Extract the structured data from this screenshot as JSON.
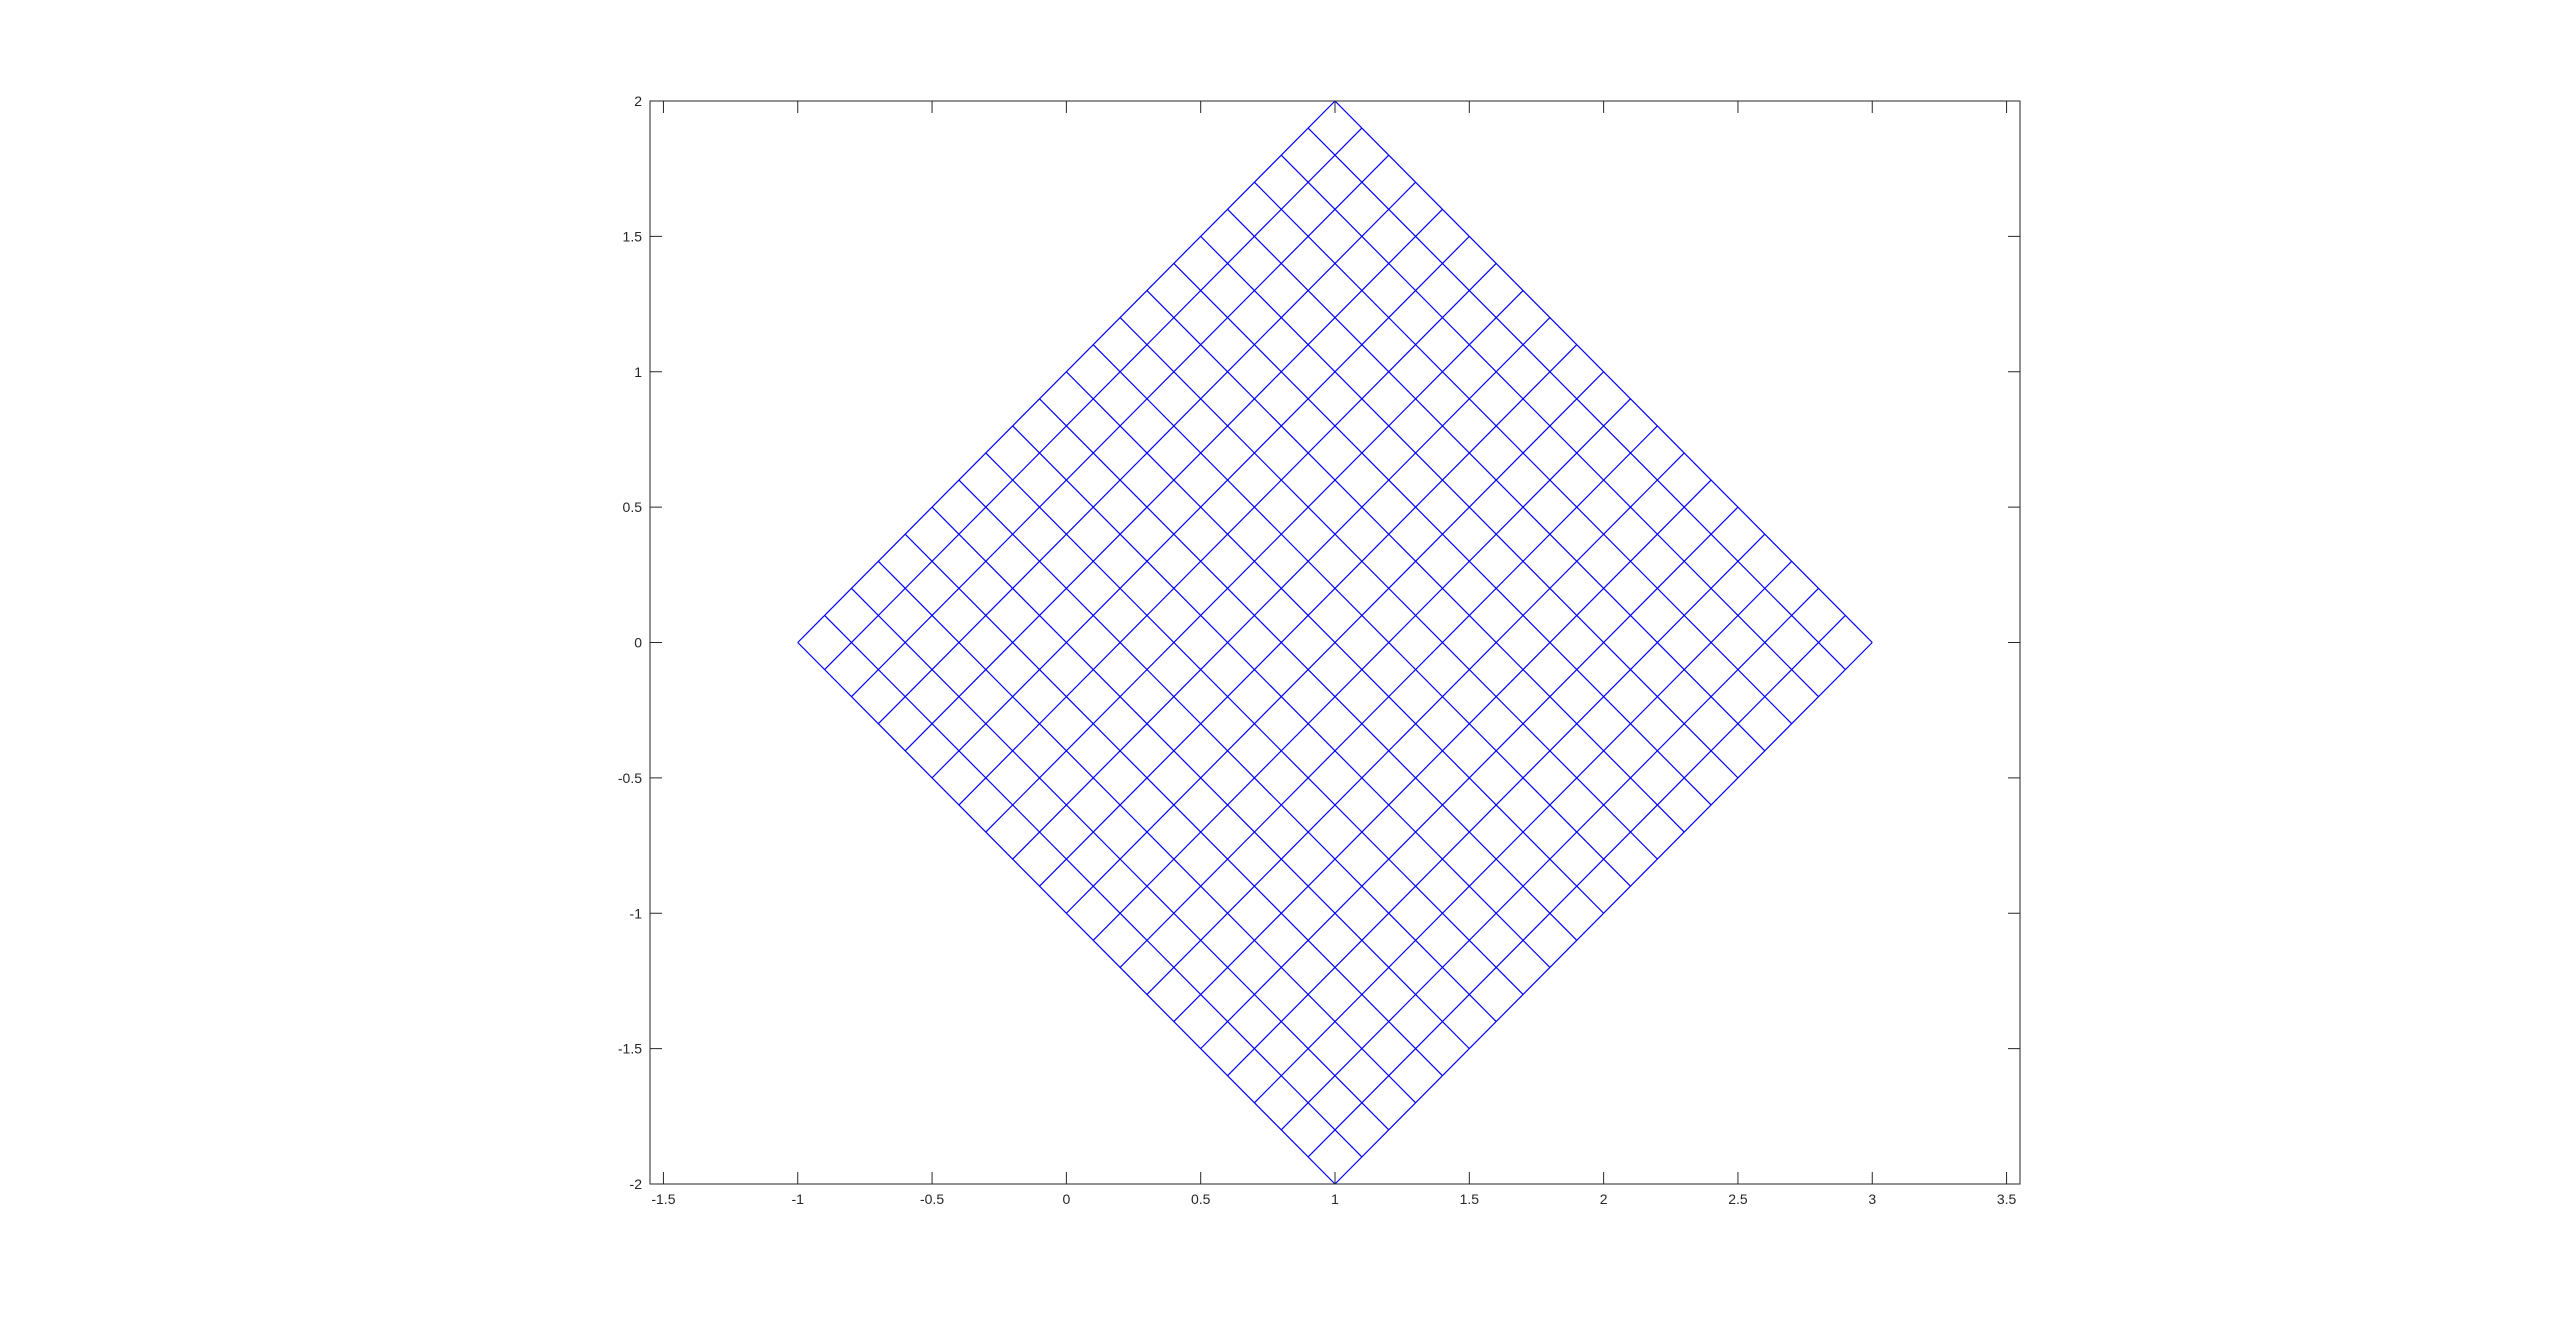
{
  "chart_data": {
    "type": "line",
    "title": "",
    "xlabel": "",
    "ylabel": "",
    "xlim": [
      -1.55,
      3.55
    ],
    "ylim": [
      -2,
      2
    ],
    "xticks": [
      -1.5,
      -1,
      -0.5,
      0,
      0.5,
      1,
      1.5,
      2,
      2.5,
      3,
      3.5
    ],
    "xtick_labels": [
      "-1.5",
      "-1",
      "-0.5",
      "0",
      "0.5",
      "1",
      "1.5",
      "2",
      "2.5",
      "3",
      "3.5"
    ],
    "yticks": [
      -2,
      -1.5,
      -1,
      -0.5,
      0,
      0.5,
      1,
      1.5,
      2
    ],
    "ytick_labels": [
      "-2",
      "-1.5",
      "-1",
      "-0.5",
      "0",
      "0.5",
      "1",
      "1.5",
      "2"
    ],
    "grid": false,
    "box": true,
    "series": [
      {
        "name": "rotated square mesh",
        "description": "Square mesh rotated 45 degrees with corners (-1,0), (1,2), (3,0), (1,-2); 20 divisions per side",
        "corners": {
          "left": [
            -1,
            0
          ],
          "top": [
            1,
            2
          ],
          "right": [
            3,
            0
          ],
          "bottom": [
            1,
            -2
          ]
        },
        "divisions": 20,
        "color": "#0000ff"
      }
    ]
  },
  "colors": {
    "mesh": "#0000ff",
    "axis": "#262626",
    "background": "#ffffff"
  }
}
